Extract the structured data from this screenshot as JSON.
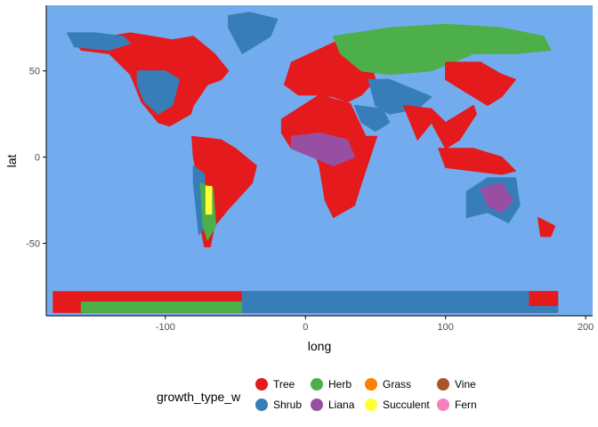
{
  "chart_data": {
    "type": "scatter",
    "title": "",
    "xlabel": "long",
    "ylabel": "lat",
    "xlim": [
      -185,
      205
    ],
    "ylim": [
      -92,
      88
    ],
    "x_ticks": [
      -100,
      0,
      100,
      200
    ],
    "y_ticks": [
      -50,
      0,
      50
    ],
    "x_tick_labels": [
      "-100",
      "0",
      "100",
      "200"
    ],
    "y_tick_labels": [
      "-50",
      "0",
      "50"
    ],
    "grid": false,
    "panel_background": "#73ACEE",
    "legend_position": "bottom",
    "legend_title": "growth_type_w",
    "categories": [
      {
        "name": "Tree",
        "color": "#E41A1C"
      },
      {
        "name": "Shrub",
        "color": "#377EB8"
      },
      {
        "name": "Herb",
        "color": "#4DAF4A"
      },
      {
        "name": "Liana",
        "color": "#984EA3"
      },
      {
        "name": "Grass",
        "color": "#FF7F00"
      },
      {
        "name": "Succulent",
        "color": "#FFFF33"
      },
      {
        "name": "Vine",
        "color": "#A65628"
      },
      {
        "name": "Fern",
        "color": "#F781BF"
      }
    ],
    "regions": [
      {
        "category": "Tree",
        "x": [
          -168,
          -140,
          -125,
          -110,
          -95,
          -80,
          -65,
          -55,
          -60,
          -70,
          -80,
          -82,
          -97,
          -105,
          -117,
          -125,
          -140,
          -160
        ],
        "y": [
          70,
          70,
          72,
          70,
          68,
          70,
          60,
          50,
          45,
          42,
          30,
          25,
          18,
          20,
          32,
          48,
          60,
          62
        ]
      },
      {
        "category": "Shrub",
        "x": [
          -170,
          -150,
          -130,
          -125,
          -140,
          -165
        ],
        "y": [
          72,
          72,
          70,
          66,
          62,
          64
        ]
      },
      {
        "category": "Shrub",
        "x": [
          -120,
          -100,
          -90,
          -95,
          -105,
          -115,
          -120
        ],
        "y": [
          50,
          50,
          45,
          30,
          25,
          32,
          42
        ]
      },
      {
        "category": "Shrub",
        "x": [
          -55,
          -40,
          -20,
          -25,
          -45,
          -55
        ],
        "y": [
          82,
          84,
          80,
          70,
          60,
          75
        ]
      },
      {
        "category": "Tree",
        "x": [
          -81,
          -60,
          -50,
          -35,
          -38,
          -55,
          -65,
          -68,
          -72,
          -75,
          -72,
          -78,
          -80
        ],
        "y": [
          12,
          10,
          5,
          -5,
          -15,
          -30,
          -40,
          -52,
          -52,
          -40,
          -20,
          -8,
          0
        ]
      },
      {
        "category": "Shrub",
        "x": [
          -80,
          -72,
          -72,
          -76,
          -80
        ],
        "y": [
          -5,
          -10,
          -40,
          -45,
          -15
        ]
      },
      {
        "category": "Herb",
        "x": [
          -75,
          -66,
          -64,
          -70,
          -73
        ],
        "y": [
          -15,
          -18,
          -40,
          -48,
          -40
        ]
      },
      {
        "category": "Succulent",
        "x": [
          -71,
          -67,
          -67,
          -71
        ],
        "y": [
          -17,
          -17,
          -33,
          -33
        ]
      },
      {
        "category": "Tree",
        "x": [
          -10,
          30,
          40,
          50,
          40,
          30,
          20,
          10,
          -5,
          -15
        ],
        "y": [
          55,
          70,
          70,
          45,
          36,
          32,
          35,
          36,
          36,
          42
        ]
      },
      {
        "category": "Tree",
        "x": [
          -17,
          10,
          32,
          43,
          51,
          40,
          35,
          20,
          14,
          10,
          5,
          -10,
          -17
        ],
        "y": [
          22,
          36,
          31,
          12,
          12,
          -15,
          -28,
          -35,
          -25,
          -5,
          5,
          5,
          14
        ]
      },
      {
        "category": "Liana",
        "x": [
          -10,
          10,
          30,
          35,
          20,
          5,
          -10
        ],
        "y": [
          12,
          14,
          10,
          0,
          -5,
          0,
          5
        ]
      },
      {
        "category": "Herb",
        "x": [
          20,
          60,
          100,
          140,
          170,
          175,
          150,
          120,
          90,
          60,
          40,
          25
        ],
        "y": [
          70,
          75,
          77,
          75,
          70,
          62,
          60,
          60,
          50,
          48,
          50,
          60
        ]
      },
      {
        "category": "Shrub",
        "x": [
          45,
          60,
          75,
          90,
          80,
          60,
          50
        ],
        "y": [
          45,
          45,
          40,
          35,
          28,
          25,
          30
        ]
      },
      {
        "category": "Shrub",
        "x": [
          35,
          55,
          60,
          50,
          40
        ],
        "y": [
          30,
          28,
          20,
          15,
          20
        ]
      },
      {
        "category": "Tree",
        "x": [
          70,
          90,
          100,
          120,
          122,
          110,
          100,
          90,
          80,
          75
        ],
        "y": [
          30,
          28,
          20,
          30,
          25,
          10,
          5,
          20,
          10,
          20
        ]
      },
      {
        "category": "Tree",
        "x": [
          100,
          125,
          140,
          150,
          140,
          130,
          110,
          100
        ],
        "y": [
          55,
          55,
          48,
          45,
          35,
          30,
          40,
          45
        ]
      },
      {
        "category": "Tree",
        "x": [
          95,
          120,
          140,
          150,
          140,
          120,
          100
        ],
        "y": [
          5,
          5,
          0,
          -8,
          -10,
          -8,
          -6
        ]
      },
      {
        "category": "Shrub",
        "x": [
          115,
          130,
          150,
          153,
          145,
          130,
          115
        ],
        "y": [
          -20,
          -12,
          -12,
          -28,
          -38,
          -32,
          -35
        ]
      },
      {
        "category": "Liana",
        "x": [
          125,
          140,
          148,
          140,
          130
        ],
        "y": [
          -18,
          -15,
          -25,
          -32,
          -28
        ]
      },
      {
        "category": "Tree",
        "x": [
          166,
          178,
          175,
          168
        ],
        "y": [
          -35,
          -40,
          -46,
          -46
        ]
      },
      {
        "category": "Tree",
        "x": [
          -180,
          180,
          180,
          -180
        ],
        "y": [
          -78,
          -78,
          -90,
          -90
        ]
      },
      {
        "category": "Herb",
        "x": [
          -160,
          -45,
          -45,
          -160
        ],
        "y": [
          -84,
          -84,
          -90,
          -90
        ]
      },
      {
        "category": "Shrub",
        "x": [
          -45,
          180,
          180,
          -45
        ],
        "y": [
          -78,
          -78,
          -90,
          -90
        ]
      },
      {
        "category": "Tree",
        "x": [
          160,
          180,
          180,
          160
        ],
        "y": [
          -78,
          -78,
          -86,
          -86
        ]
      }
    ]
  }
}
